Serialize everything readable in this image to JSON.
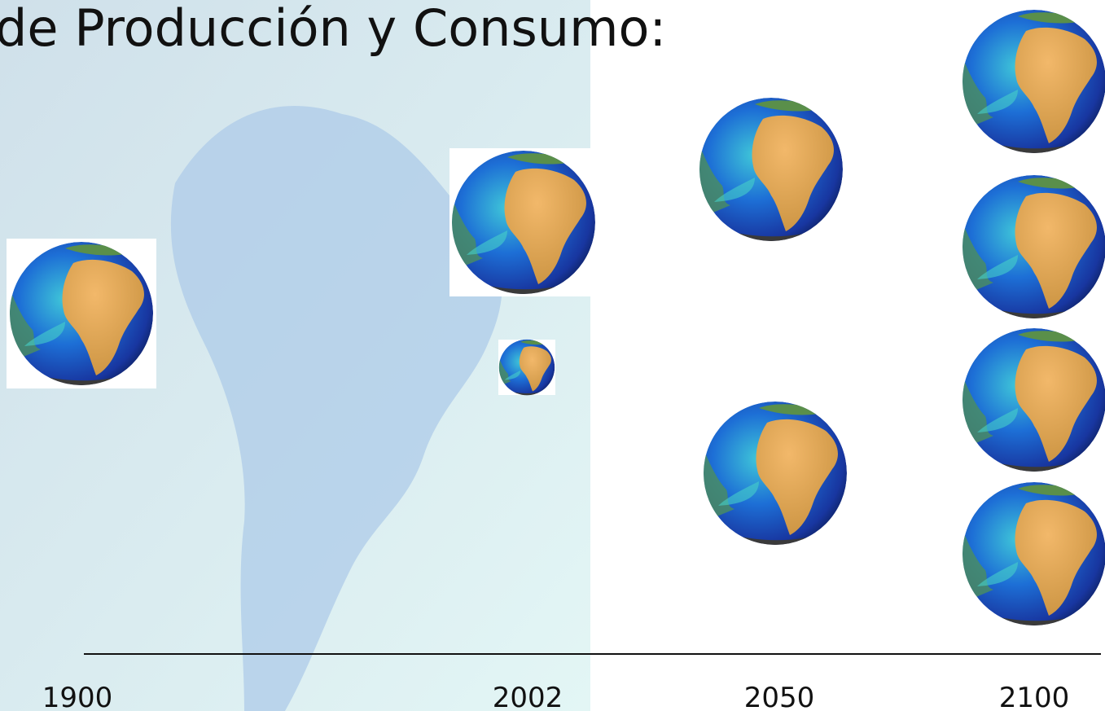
{
  "header": {
    "title": "de Producción y Consumo:"
  },
  "timeline": {
    "labels": [
      "1900",
      "2002",
      "2050",
      "2100"
    ]
  }
}
